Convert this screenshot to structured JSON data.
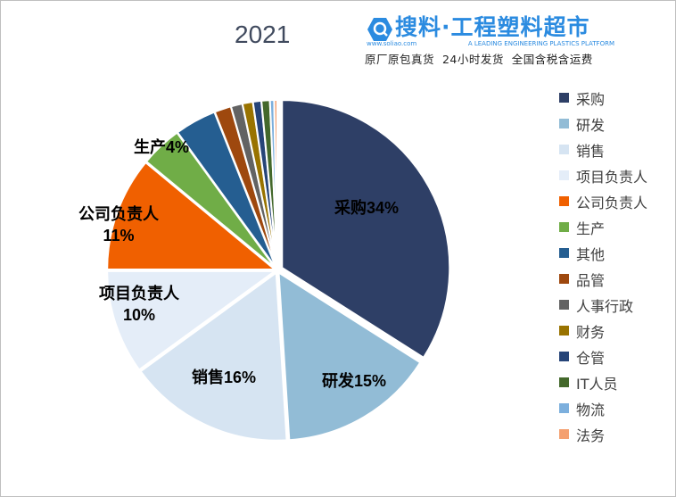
{
  "chart_data": {
    "type": "pie",
    "title": "2021",
    "categories": [
      "采购",
      "研发",
      "销售",
      "项目负责人",
      "公司负责人",
      "生产",
      "其他",
      "品管",
      "人事行政",
      "财务",
      "仓管",
      "IT人员",
      "物流",
      "法务"
    ],
    "values": [
      34,
      15,
      16,
      10,
      11,
      4,
      4,
      1.6,
      1.1,
      1.0,
      0.8,
      0.8,
      0.4,
      0.3
    ],
    "colors": [
      "#2e3f66",
      "#92bcd6",
      "#d6e4f2",
      "#e4edf8",
      "#f06000",
      "#70ad47",
      "#255e91",
      "#9e480e",
      "#636363",
      "#997300",
      "#264478",
      "#43682b",
      "#7cafdd",
      "#f4a070"
    ],
    "data_labels": [
      {
        "index": 0,
        "lines": [
          "采购34%"
        ]
      },
      {
        "index": 1,
        "lines": [
          "研发15%"
        ]
      },
      {
        "index": 2,
        "lines": [
          "销售16%"
        ]
      },
      {
        "index": 3,
        "lines": [
          "项目负责人",
          "10%"
        ]
      },
      {
        "index": 4,
        "lines": [
          "公司负责人",
          "11%"
        ]
      },
      {
        "index": 5,
        "lines": [
          "生产4%"
        ]
      }
    ],
    "legend_position": "right"
  },
  "logo": {
    "main": "搜料·工程塑料超市",
    "url": "www.soliao.com",
    "tagline": "A LEADING ENGINEERING PLASTICS PLATFORM",
    "slogan": "原厂原包真货  24小时发货  全国含税含运费"
  }
}
